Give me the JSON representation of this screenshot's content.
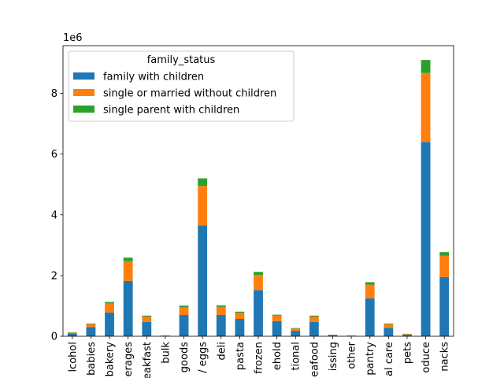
{
  "chart_data": {
    "type": "bar",
    "stacked": true,
    "offset_label": "1e6",
    "categories": [
      "alcohol",
      "babies",
      "bakery",
      "beverages",
      "breakfast",
      "bulk",
      "canned goods",
      "dairy eggs",
      "deli",
      "dry goods pasta",
      "frozen",
      "household",
      "international",
      "meat seafood",
      "missing",
      "other",
      "pantry",
      "personal care",
      "pets",
      "produce",
      "snacks"
    ],
    "tick_labels": [
      "lcohol",
      "babies",
      "bakery",
      "erages",
      "eakfast",
      "bulk",
      "goods",
      "/ eggs",
      "deli",
      "pasta",
      "frozen",
      "ehold",
      "tional",
      "eafood",
      "issing",
      "other",
      "pantry",
      "al care",
      "pets",
      "oduce",
      "nacks"
    ],
    "series": [
      {
        "name": "family with children",
        "color": "#1f77b4",
        "values": [
          0.09,
          0.3,
          0.78,
          1.82,
          0.47,
          0.02,
          0.7,
          3.65,
          0.7,
          0.57,
          1.52,
          0.5,
          0.18,
          0.47,
          0.04,
          0.02,
          1.25,
          0.28,
          0.05,
          6.4,
          1.95
        ]
      },
      {
        "name": "single or married without children",
        "color": "#ff7f0e",
        "values": [
          0.03,
          0.1,
          0.3,
          0.65,
          0.18,
          0.01,
          0.26,
          1.3,
          0.27,
          0.2,
          0.5,
          0.18,
          0.07,
          0.18,
          0.01,
          0.01,
          0.45,
          0.12,
          0.02,
          2.27,
          0.7
        ]
      },
      {
        "name": "single parent with children",
        "color": "#2ca02c",
        "values": [
          0.01,
          0.02,
          0.05,
          0.12,
          0.03,
          0.0,
          0.05,
          0.25,
          0.05,
          0.04,
          0.1,
          0.03,
          0.02,
          0.03,
          0.0,
          0.0,
          0.08,
          0.02,
          0.01,
          0.43,
          0.12
        ]
      }
    ],
    "ylim": [
      0,
      9.57
    ],
    "yticks": [
      0,
      2,
      4,
      6,
      8
    ],
    "legend": {
      "title": "family_status",
      "position": "upper-left"
    },
    "xlabel": "",
    "ylabel": "",
    "grid": false
  }
}
